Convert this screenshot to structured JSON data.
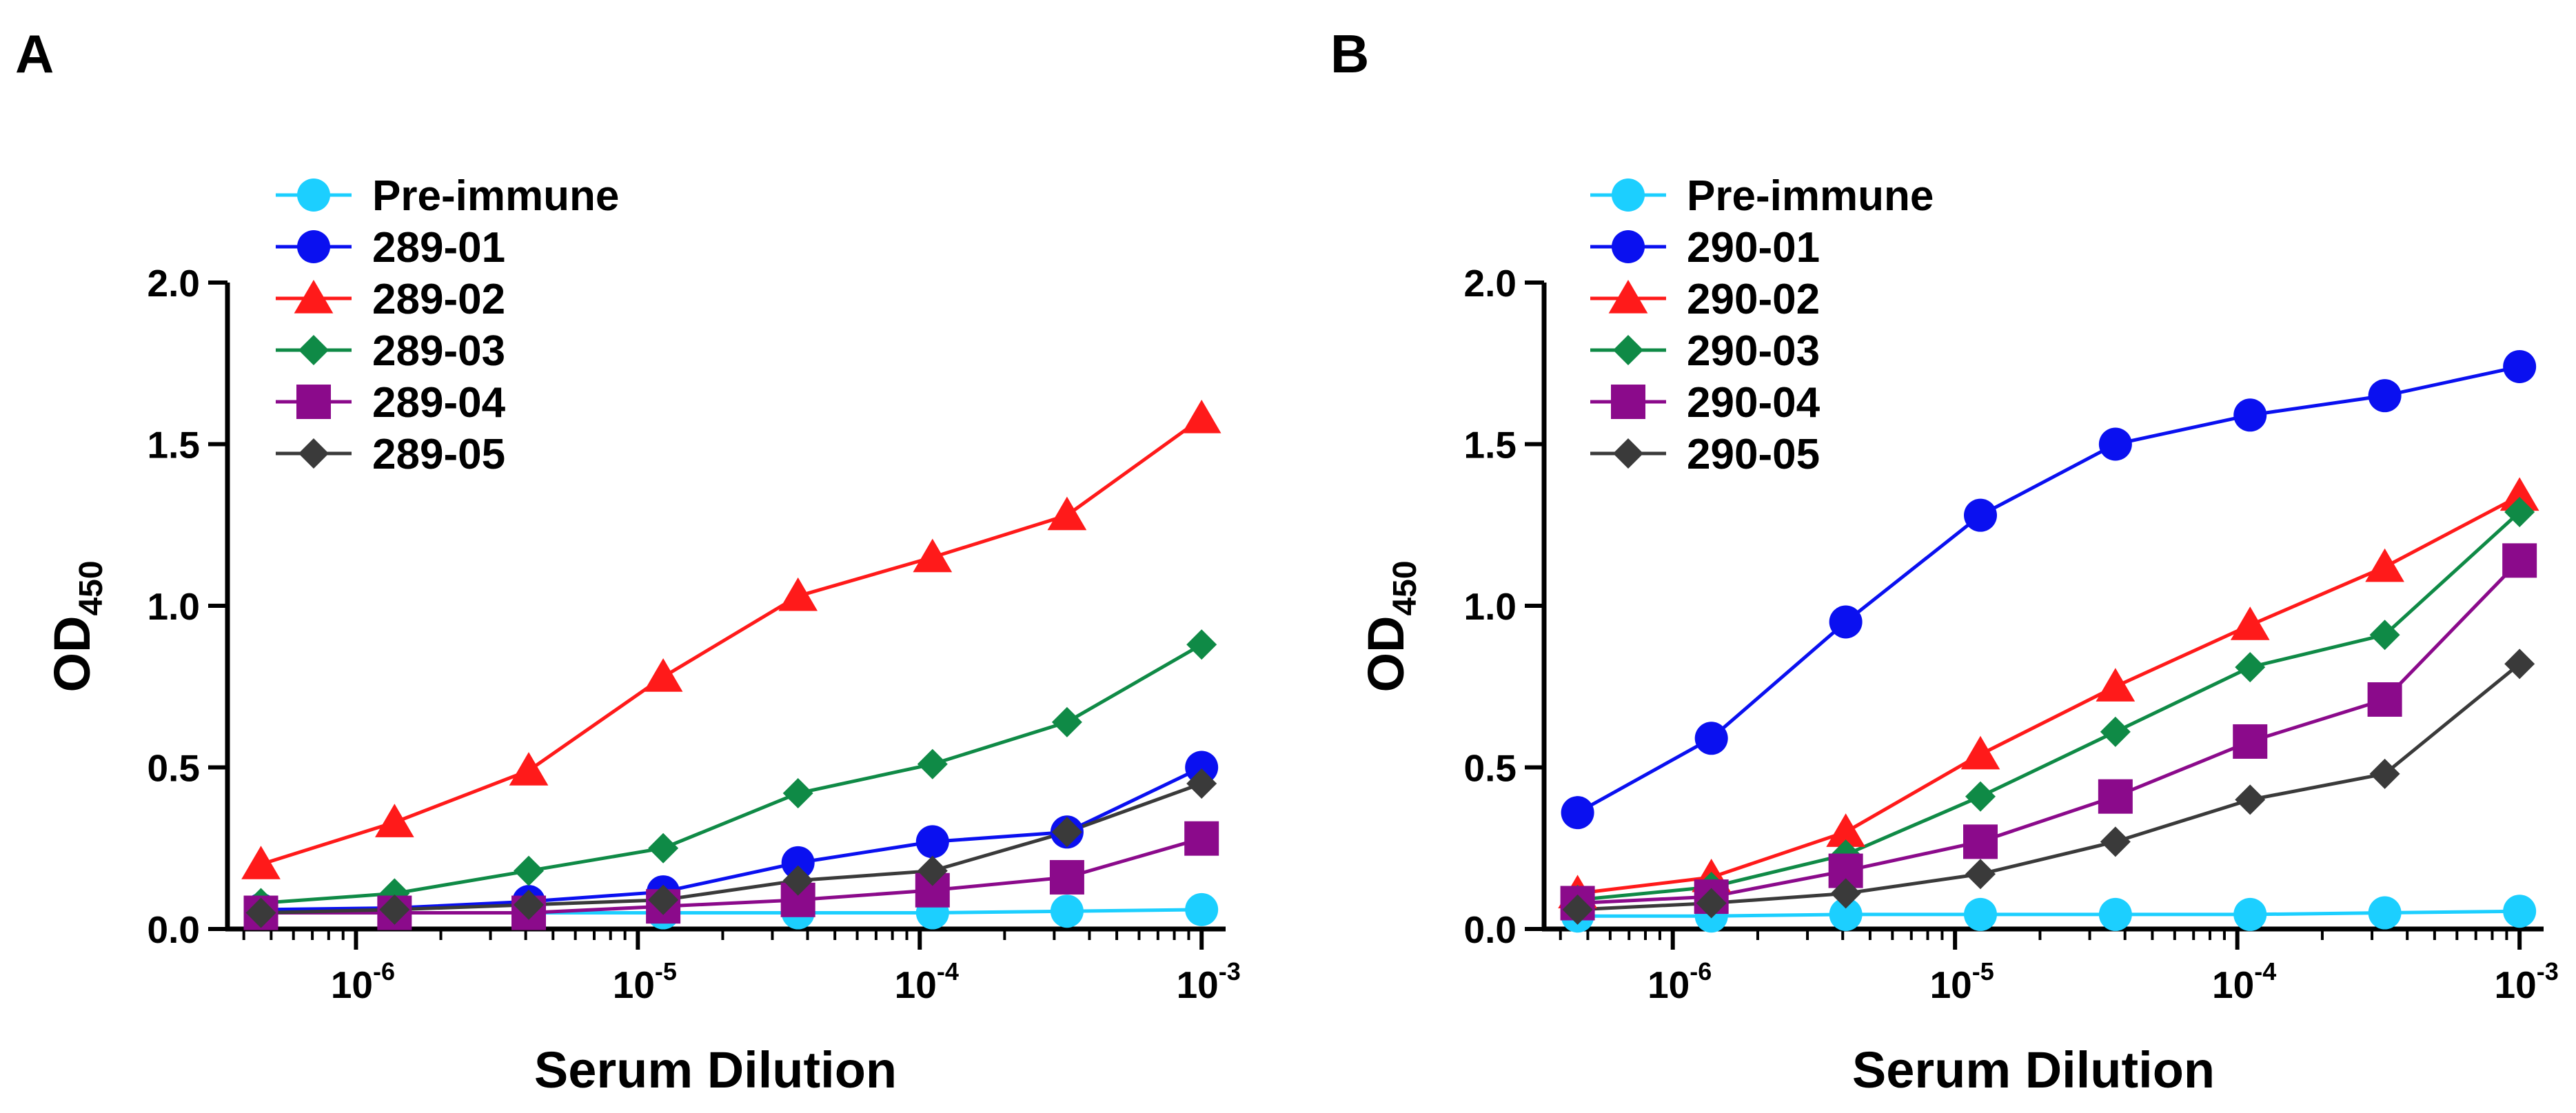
{
  "colors": {
    "pre_immune": "#1ccfff",
    "s01": "#0a10f0",
    "s02": "#ff1a1a",
    "s03": "#0f8a46",
    "s04": "#8b0a8b",
    "s05": "#3a3a3a"
  },
  "chart_data": [
    {
      "type": "line",
      "panel": "A",
      "xscale": "log",
      "x": [
        4.6e-07,
        1.37e-06,
        4.1e-06,
        1.23e-05,
        3.7e-05,
        0.000111,
        0.000333,
        0.001
      ],
      "xticks": [
        {
          "base": "10",
          "exp": "-6",
          "value": 1e-06
        },
        {
          "base": "10",
          "exp": "-5",
          "value": 1e-05
        },
        {
          "base": "10",
          "exp": "-4",
          "value": 0.0001
        },
        {
          "base": "10",
          "exp": "-3",
          "value": 0.001
        }
      ],
      "xlim": [
        3.5e-07,
        0.00115
      ],
      "ylim": [
        0,
        2.0
      ],
      "yticks": [
        "0.0",
        "0.5",
        "1.0",
        "1.5",
        "2.0"
      ],
      "ytick_values": [
        0,
        0.5,
        1.0,
        1.5,
        2.0
      ],
      "xlabel": "Serum Dilution",
      "ylabel_main": "OD",
      "ylabel_sub": "450",
      "legend_position": "top-left",
      "series": [
        {
          "name": "Pre-immune",
          "marker": "circle",
          "color_key": "pre_immune",
          "values": [
            0.05,
            0.05,
            0.05,
            0.05,
            0.05,
            0.05,
            0.055,
            0.06
          ]
        },
        {
          "name": "289-01",
          "marker": "circle",
          "color_key": "s01",
          "values": [
            0.06,
            0.065,
            0.085,
            0.115,
            0.205,
            0.27,
            0.3,
            0.5
          ]
        },
        {
          "name": "289-02",
          "marker": "triangle",
          "color_key": "s02",
          "values": [
            0.2,
            0.33,
            0.49,
            0.78,
            1.03,
            1.15,
            1.28,
            1.58
          ]
        },
        {
          "name": "289-03",
          "marker": "diamond",
          "color_key": "s03",
          "values": [
            0.08,
            0.11,
            0.18,
            0.25,
            0.42,
            0.51,
            0.64,
            0.88
          ]
        },
        {
          "name": "289-04",
          "marker": "square",
          "color_key": "s04",
          "values": [
            0.05,
            0.05,
            0.05,
            0.07,
            0.09,
            0.12,
            0.16,
            0.28
          ]
        },
        {
          "name": "289-05",
          "marker": "diamond",
          "color_key": "s05",
          "values": [
            0.05,
            0.06,
            0.075,
            0.09,
            0.15,
            0.18,
            0.3,
            0.45
          ]
        }
      ]
    },
    {
      "type": "line",
      "panel": "B",
      "xscale": "log",
      "x": [
        4.6e-07,
        1.37e-06,
        4.1e-06,
        1.23e-05,
        3.7e-05,
        0.000111,
        0.000333,
        0.001
      ],
      "xticks": [
        {
          "base": "10",
          "exp": "-6",
          "value": 1e-06
        },
        {
          "base": "10",
          "exp": "-5",
          "value": 1e-05
        },
        {
          "base": "10",
          "exp": "-4",
          "value": 0.0001
        },
        {
          "base": "10",
          "exp": "-3",
          "value": 0.001
        }
      ],
      "xlim": [
        3.5e-07,
        0.00115
      ],
      "ylim": [
        0,
        2.0
      ],
      "yticks": [
        "0.0",
        "0.5",
        "1.0",
        "1.5",
        "2.0"
      ],
      "ytick_values": [
        0,
        0.5,
        1.0,
        1.5,
        2.0
      ],
      "xlabel": "Serum Dilution",
      "ylabel_main": "OD",
      "ylabel_sub": "450",
      "legend_position": "top-left",
      "series": [
        {
          "name": "Pre-immune",
          "marker": "circle",
          "color_key": "pre_immune",
          "values": [
            0.04,
            0.04,
            0.045,
            0.045,
            0.045,
            0.045,
            0.05,
            0.055
          ]
        },
        {
          "name": "290-01",
          "marker": "circle",
          "color_key": "s01",
          "values": [
            0.36,
            0.59,
            0.95,
            1.28,
            1.5,
            1.59,
            1.65,
            1.74
          ]
        },
        {
          "name": "290-02",
          "marker": "triangle",
          "color_key": "s02",
          "values": [
            0.11,
            0.16,
            0.3,
            0.54,
            0.75,
            0.94,
            1.12,
            1.34
          ]
        },
        {
          "name": "290-03",
          "marker": "diamond",
          "color_key": "s03",
          "values": [
            0.09,
            0.13,
            0.23,
            0.41,
            0.61,
            0.81,
            0.91,
            1.29
          ]
        },
        {
          "name": "290-04",
          "marker": "square",
          "color_key": "s04",
          "values": [
            0.08,
            0.1,
            0.18,
            0.27,
            0.41,
            0.58,
            0.71,
            1.14
          ]
        },
        {
          "name": "290-05",
          "marker": "diamond",
          "color_key": "s05",
          "values": [
            0.06,
            0.08,
            0.11,
            0.17,
            0.27,
            0.4,
            0.48,
            0.82
          ]
        }
      ]
    }
  ]
}
